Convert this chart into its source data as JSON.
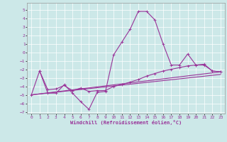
{
  "title": "",
  "xlabel": "Windchill (Refroidissement éolien,°C)",
  "bg_color": "#cce8e8",
  "line_color": "#993399",
  "xlim": [
    -0.5,
    23.5
  ],
  "ylim": [
    -7.2,
    5.8
  ],
  "yticks": [
    -7,
    -6,
    -5,
    -4,
    -3,
    -2,
    -1,
    0,
    1,
    2,
    3,
    4,
    5
  ],
  "xticks": [
    0,
    1,
    2,
    3,
    4,
    5,
    6,
    7,
    8,
    9,
    10,
    11,
    12,
    13,
    14,
    15,
    16,
    17,
    18,
    19,
    20,
    21,
    22,
    23
  ],
  "series1_x": [
    0,
    1,
    2,
    3,
    4,
    5,
    6,
    7,
    8,
    9,
    10,
    11,
    12,
    13,
    14,
    15,
    16,
    17,
    18,
    19,
    20,
    21,
    22,
    23
  ],
  "series1_y": [
    -5.0,
    -2.2,
    -4.8,
    -4.8,
    -3.8,
    -4.8,
    -5.8,
    -6.7,
    -4.7,
    -4.6,
    -0.3,
    1.2,
    2.7,
    4.8,
    4.8,
    3.8,
    1.0,
    -1.5,
    -1.5,
    -0.2,
    -1.5,
    -1.5,
    -2.2,
    -2.3
  ],
  "series2_x": [
    1,
    2,
    3,
    4,
    5,
    6,
    7,
    8,
    9,
    10,
    11,
    12,
    13,
    14,
    15,
    16,
    17,
    18,
    19,
    20,
    21,
    22,
    23
  ],
  "series2_y": [
    -2.2,
    -4.4,
    -4.3,
    -3.9,
    -4.5,
    -4.2,
    -4.6,
    -4.5,
    -4.5,
    -4.0,
    -3.8,
    -3.5,
    -3.2,
    -2.8,
    -2.5,
    -2.2,
    -2.0,
    -1.8,
    -1.6,
    -1.5,
    -1.4,
    -2.2,
    -2.3
  ],
  "series3_x": [
    0,
    23
  ],
  "series3_y": [
    -5.0,
    -2.3
  ],
  "series4_x": [
    0,
    23
  ],
  "series4_y": [
    -5.0,
    -2.6
  ],
  "marker_size": 2.0,
  "line_width": 0.8
}
